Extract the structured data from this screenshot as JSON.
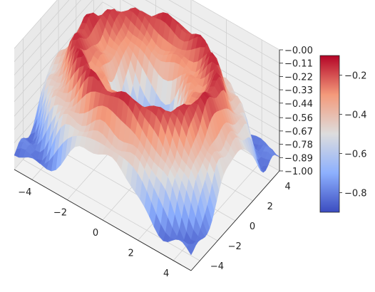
{
  "chart_data": {
    "type": "surface3d",
    "title": "",
    "colormap": "coolwarm",
    "x_range": [
      -5,
      5
    ],
    "y_range": [
      -5,
      5
    ],
    "z_range": [
      -1.0,
      0.0
    ],
    "x_ticks": [
      -4,
      -2,
      0,
      2,
      4
    ],
    "y_ticks": [
      -4,
      -2,
      0,
      2,
      4
    ],
    "z_ticks": [
      "-0.00",
      "-0.11",
      "-0.22",
      "-0.33",
      "-0.44",
      "-0.56",
      "-0.67",
      "-0.78",
      "-0.89",
      "-1.00"
    ],
    "colorbar": {
      "range": [
        -0.9,
        -0.1
      ],
      "ticks": [
        -0.2,
        -0.4,
        -0.6,
        -0.8
      ],
      "tick_labels": [
        "-0.2",
        "-0.4",
        "-0.6",
        "-0.8"
      ]
    },
    "surface_description": "Radially symmetric rippled surface: deep minimum (about -0.85) at center, high ring (about -0.05) around radius 3-4, lower again near corners",
    "grid": true
  },
  "colors": {
    "cool": "#3b4cc0",
    "warm": "#b40426",
    "neutral": "#dddddd",
    "pane": "#f2f2f2",
    "grid": "#d0d0d0"
  }
}
